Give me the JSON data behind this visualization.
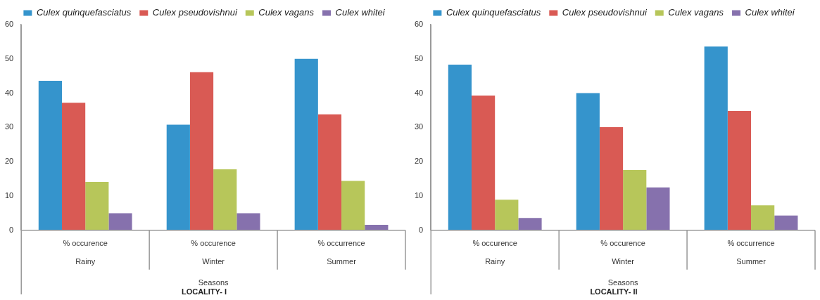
{
  "chart_data": [
    {
      "type": "bar",
      "title": "LOCALITY- I",
      "xlabel": "Seasons",
      "categories": [
        "% occurence\nRainy",
        "% occurence\nWinter",
        "% occurrence\nSummer"
      ],
      "series": [
        {
          "name": "Culex quinquefasciatus",
          "color": "#3594cc",
          "values": [
            43.6,
            30.8,
            50.0
          ]
        },
        {
          "name": "Culex pseudovishnui",
          "color": "#d95a54",
          "values": [
            37.2,
            46.1,
            33.8
          ]
        },
        {
          "name": "Culex vagans",
          "color": "#b7c65a",
          "values": [
            14.1,
            17.8,
            14.4
          ]
        },
        {
          "name": "Culex whitei",
          "color": "#8671ad",
          "values": [
            5.0,
            5.0,
            1.6
          ]
        }
      ],
      "ylim": [
        0,
        60
      ],
      "yticks": [
        0,
        10,
        20,
        30,
        40,
        50,
        60
      ],
      "grid": false,
      "legend": "top"
    },
    {
      "type": "bar",
      "title": "LOCALITY- II",
      "xlabel": "Seasons",
      "categories": [
        "% occurence\nRainy",
        "% occurence\nWinter",
        "% occurrence\nSummer"
      ],
      "series": [
        {
          "name": "Culex quinquefasciatus",
          "color": "#3594cc",
          "values": [
            48.3,
            40.0,
            53.6
          ]
        },
        {
          "name": "Culex pseudovishnui",
          "color": "#d95a54",
          "values": [
            39.3,
            30.1,
            34.8
          ]
        },
        {
          "name": "Culex vagans",
          "color": "#b7c65a",
          "values": [
            8.9,
            17.6,
            7.3
          ]
        },
        {
          "name": "Culex whitei",
          "color": "#8671ad",
          "values": [
            3.6,
            12.5,
            4.3
          ]
        }
      ],
      "ylim": [
        0,
        60
      ],
      "yticks": [
        0,
        10,
        20,
        30,
        40,
        50,
        60
      ],
      "grid": false,
      "legend": "top"
    }
  ]
}
